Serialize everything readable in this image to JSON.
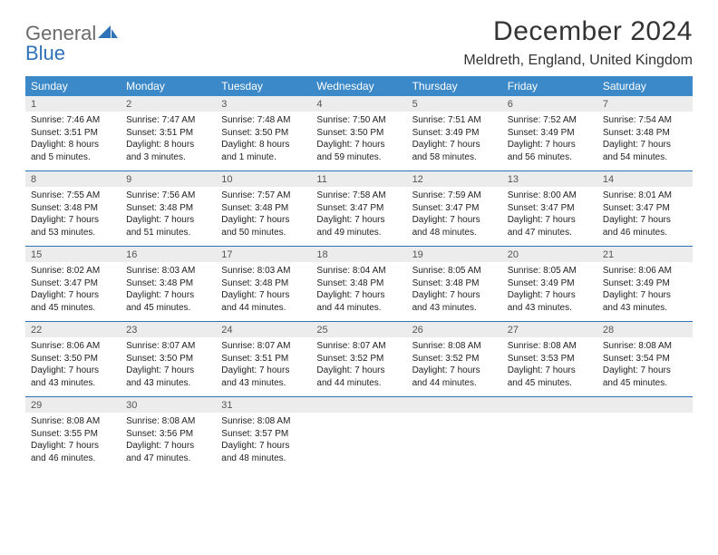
{
  "logo": {
    "line1": "General",
    "line2": "Blue"
  },
  "title": "December 2024",
  "location": "Meldreth, England, United Kingdom",
  "colors": {
    "header_bg": "#3b89c9",
    "header_text": "#ffffff",
    "daynum_bg": "#ececec",
    "rule": "#2e72b8",
    "logo_gray": "#6b6b6b",
    "logo_blue": "#2e72b8"
  },
  "day_names": [
    "Sunday",
    "Monday",
    "Tuesday",
    "Wednesday",
    "Thursday",
    "Friday",
    "Saturday"
  ],
  "weeks": [
    [
      {
        "n": "1",
        "sr": "Sunrise: 7:46 AM",
        "ss": "Sunset: 3:51 PM",
        "dl": "Daylight: 8 hours and 5 minutes."
      },
      {
        "n": "2",
        "sr": "Sunrise: 7:47 AM",
        "ss": "Sunset: 3:51 PM",
        "dl": "Daylight: 8 hours and 3 minutes."
      },
      {
        "n": "3",
        "sr": "Sunrise: 7:48 AM",
        "ss": "Sunset: 3:50 PM",
        "dl": "Daylight: 8 hours and 1 minute."
      },
      {
        "n": "4",
        "sr": "Sunrise: 7:50 AM",
        "ss": "Sunset: 3:50 PM",
        "dl": "Daylight: 7 hours and 59 minutes."
      },
      {
        "n": "5",
        "sr": "Sunrise: 7:51 AM",
        "ss": "Sunset: 3:49 PM",
        "dl": "Daylight: 7 hours and 58 minutes."
      },
      {
        "n": "6",
        "sr": "Sunrise: 7:52 AM",
        "ss": "Sunset: 3:49 PM",
        "dl": "Daylight: 7 hours and 56 minutes."
      },
      {
        "n": "7",
        "sr": "Sunrise: 7:54 AM",
        "ss": "Sunset: 3:48 PM",
        "dl": "Daylight: 7 hours and 54 minutes."
      }
    ],
    [
      {
        "n": "8",
        "sr": "Sunrise: 7:55 AM",
        "ss": "Sunset: 3:48 PM",
        "dl": "Daylight: 7 hours and 53 minutes."
      },
      {
        "n": "9",
        "sr": "Sunrise: 7:56 AM",
        "ss": "Sunset: 3:48 PM",
        "dl": "Daylight: 7 hours and 51 minutes."
      },
      {
        "n": "10",
        "sr": "Sunrise: 7:57 AM",
        "ss": "Sunset: 3:48 PM",
        "dl": "Daylight: 7 hours and 50 minutes."
      },
      {
        "n": "11",
        "sr": "Sunrise: 7:58 AM",
        "ss": "Sunset: 3:47 PM",
        "dl": "Daylight: 7 hours and 49 minutes."
      },
      {
        "n": "12",
        "sr": "Sunrise: 7:59 AM",
        "ss": "Sunset: 3:47 PM",
        "dl": "Daylight: 7 hours and 48 minutes."
      },
      {
        "n": "13",
        "sr": "Sunrise: 8:00 AM",
        "ss": "Sunset: 3:47 PM",
        "dl": "Daylight: 7 hours and 47 minutes."
      },
      {
        "n": "14",
        "sr": "Sunrise: 8:01 AM",
        "ss": "Sunset: 3:47 PM",
        "dl": "Daylight: 7 hours and 46 minutes."
      }
    ],
    [
      {
        "n": "15",
        "sr": "Sunrise: 8:02 AM",
        "ss": "Sunset: 3:47 PM",
        "dl": "Daylight: 7 hours and 45 minutes."
      },
      {
        "n": "16",
        "sr": "Sunrise: 8:03 AM",
        "ss": "Sunset: 3:48 PM",
        "dl": "Daylight: 7 hours and 45 minutes."
      },
      {
        "n": "17",
        "sr": "Sunrise: 8:03 AM",
        "ss": "Sunset: 3:48 PM",
        "dl": "Daylight: 7 hours and 44 minutes."
      },
      {
        "n": "18",
        "sr": "Sunrise: 8:04 AM",
        "ss": "Sunset: 3:48 PM",
        "dl": "Daylight: 7 hours and 44 minutes."
      },
      {
        "n": "19",
        "sr": "Sunrise: 8:05 AM",
        "ss": "Sunset: 3:48 PM",
        "dl": "Daylight: 7 hours and 43 minutes."
      },
      {
        "n": "20",
        "sr": "Sunrise: 8:05 AM",
        "ss": "Sunset: 3:49 PM",
        "dl": "Daylight: 7 hours and 43 minutes."
      },
      {
        "n": "21",
        "sr": "Sunrise: 8:06 AM",
        "ss": "Sunset: 3:49 PM",
        "dl": "Daylight: 7 hours and 43 minutes."
      }
    ],
    [
      {
        "n": "22",
        "sr": "Sunrise: 8:06 AM",
        "ss": "Sunset: 3:50 PM",
        "dl": "Daylight: 7 hours and 43 minutes."
      },
      {
        "n": "23",
        "sr": "Sunrise: 8:07 AM",
        "ss": "Sunset: 3:50 PM",
        "dl": "Daylight: 7 hours and 43 minutes."
      },
      {
        "n": "24",
        "sr": "Sunrise: 8:07 AM",
        "ss": "Sunset: 3:51 PM",
        "dl": "Daylight: 7 hours and 43 minutes."
      },
      {
        "n": "25",
        "sr": "Sunrise: 8:07 AM",
        "ss": "Sunset: 3:52 PM",
        "dl": "Daylight: 7 hours and 44 minutes."
      },
      {
        "n": "26",
        "sr": "Sunrise: 8:08 AM",
        "ss": "Sunset: 3:52 PM",
        "dl": "Daylight: 7 hours and 44 minutes."
      },
      {
        "n": "27",
        "sr": "Sunrise: 8:08 AM",
        "ss": "Sunset: 3:53 PM",
        "dl": "Daylight: 7 hours and 45 minutes."
      },
      {
        "n": "28",
        "sr": "Sunrise: 8:08 AM",
        "ss": "Sunset: 3:54 PM",
        "dl": "Daylight: 7 hours and 45 minutes."
      }
    ],
    [
      {
        "n": "29",
        "sr": "Sunrise: 8:08 AM",
        "ss": "Sunset: 3:55 PM",
        "dl": "Daylight: 7 hours and 46 minutes."
      },
      {
        "n": "30",
        "sr": "Sunrise: 8:08 AM",
        "ss": "Sunset: 3:56 PM",
        "dl": "Daylight: 7 hours and 47 minutes."
      },
      {
        "n": "31",
        "sr": "Sunrise: 8:08 AM",
        "ss": "Sunset: 3:57 PM",
        "dl": "Daylight: 7 hours and 48 minutes."
      },
      null,
      null,
      null,
      null
    ]
  ]
}
